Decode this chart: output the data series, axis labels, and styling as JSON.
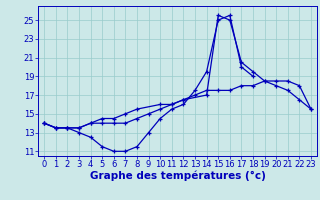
{
  "title": "Graphe des températures (°c)",
  "x_hours": [
    0,
    1,
    2,
    3,
    4,
    5,
    6,
    7,
    8,
    9,
    10,
    11,
    12,
    13,
    14,
    15,
    16,
    17,
    18,
    19,
    20,
    21,
    22,
    23
  ],
  "line_min": [
    14.0,
    13.5,
    13.5,
    13.5,
    14.0,
    14.0,
    14.0,
    14.0,
    14.5,
    15.0,
    15.5,
    16.0,
    16.5,
    17.0,
    17.5,
    17.5,
    17.5,
    18.0,
    18.0,
    18.5,
    18.5,
    18.5,
    18.0,
    15.5
  ],
  "line_cur": [
    14.0,
    13.5,
    13.5,
    13.0,
    12.5,
    11.5,
    11.0,
    11.0,
    11.5,
    13.0,
    14.5,
    15.5,
    16.0,
    17.5,
    19.5,
    25.0,
    25.5,
    20.0,
    19.0,
    null,
    null,
    null,
    null,
    null
  ],
  "line_max": [
    14.0,
    13.5,
    13.5,
    13.5,
    14.0,
    14.5,
    14.5,
    15.0,
    15.5,
    null,
    16.0,
    16.0,
    16.5,
    null,
    17.0,
    25.5,
    25.0,
    20.5,
    19.5,
    18.5,
    18.0,
    17.5,
    16.5,
    15.5
  ],
  "line_color": "#0000bb",
  "bg_color": "#cce8e8",
  "grid_color": "#99cccc",
  "ylim": [
    10.5,
    26.5
  ],
  "yticks": [
    11,
    13,
    15,
    17,
    19,
    21,
    23,
    25
  ],
  "xlim": [
    -0.5,
    23.5
  ],
  "title_fontsize": 7.5,
  "tick_fontsize": 6.0
}
